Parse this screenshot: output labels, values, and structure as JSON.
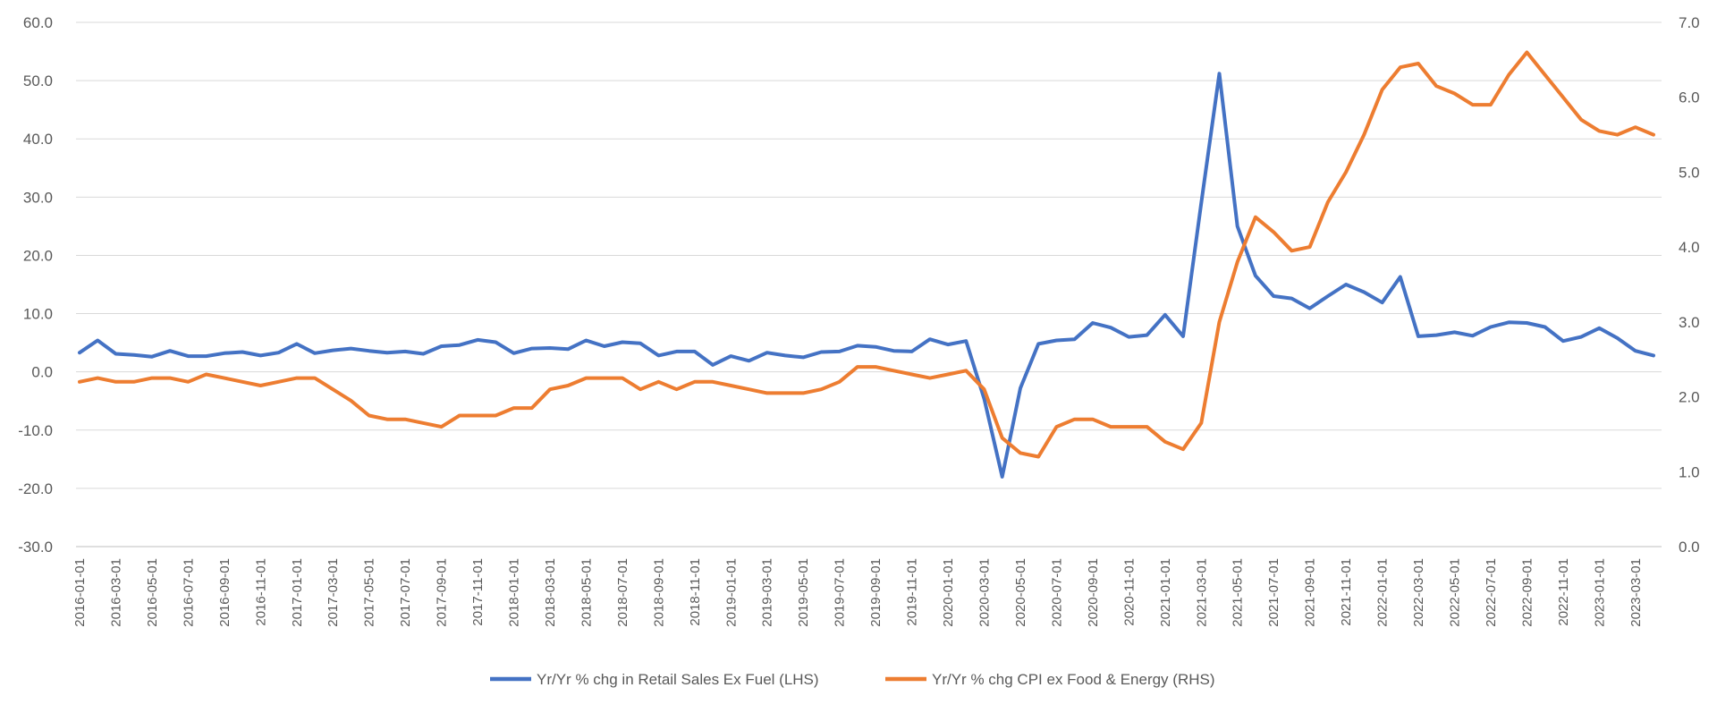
{
  "chart_data": {
    "type": "line",
    "title": "",
    "xlabel": "",
    "ylabel_left": "",
    "ylabel_right": "",
    "y_left": {
      "min": -30,
      "max": 60,
      "step": 10,
      "decimals": 1
    },
    "y_right": {
      "min": 0,
      "max": 7,
      "step": 1,
      "decimals": 1
    },
    "grid": true,
    "legend_position": "bottom",
    "x_tick_labels": [
      "2016-01-01",
      "2016-03-01",
      "2016-05-01",
      "2016-07-01",
      "2016-09-01",
      "2016-11-01",
      "2017-01-01",
      "2017-03-01",
      "2017-05-01",
      "2017-07-01",
      "2017-09-01",
      "2017-11-01",
      "2018-01-01",
      "2018-03-01",
      "2018-05-01",
      "2018-07-01",
      "2018-09-01",
      "2018-11-01",
      "2019-01-01",
      "2019-03-01",
      "2019-05-01",
      "2019-07-01",
      "2019-09-01",
      "2019-11-01",
      "2020-01-01",
      "2020-03-01",
      "2020-05-01",
      "2020-07-01",
      "2020-09-01",
      "2020-11-01",
      "2021-01-01",
      "2021-03-01",
      "2021-05-01",
      "2021-07-01",
      "2021-09-01",
      "2021-11-01",
      "2022-01-01",
      "2022-03-01",
      "2022-05-01",
      "2022-07-01",
      "2022-09-01",
      "2022-11-01",
      "2023-01-01",
      "2023-03-01"
    ],
    "series": [
      {
        "name": "Yr/Yr % chg in Retail Sales Ex Fuel (LHS)",
        "axis": "left",
        "color": "#4472C4",
        "values": [
          3.3,
          5.4,
          3.1,
          2.9,
          2.6,
          3.6,
          2.7,
          2.7,
          3.2,
          3.4,
          2.8,
          3.3,
          4.8,
          3.2,
          3.7,
          4.0,
          3.6,
          3.3,
          3.5,
          3.1,
          4.4,
          4.6,
          5.5,
          5.1,
          3.2,
          4.0,
          4.1,
          3.9,
          5.4,
          4.4,
          5.1,
          4.9,
          2.8,
          3.5,
          3.5,
          1.2,
          2.7,
          1.9,
          3.3,
          2.8,
          2.5,
          3.4,
          3.5,
          4.5,
          4.3,
          3.6,
          3.5,
          5.6,
          4.7,
          5.3,
          -4.6,
          -18.0,
          -2.8,
          4.8,
          5.4,
          5.6,
          8.4,
          7.6,
          6.0,
          6.3,
          9.8,
          6.1,
          29.0,
          51.2,
          25.0,
          16.5,
          13.0,
          12.6,
          10.9,
          13.0,
          15.0,
          13.7,
          11.9,
          16.3,
          6.1,
          6.3,
          6.8,
          6.2,
          7.7,
          8.5,
          8.4,
          7.7,
          5.3,
          6.0,
          7.5,
          5.8,
          3.6,
          2.8
        ]
      },
      {
        "name": "Yr/Yr % chg CPI ex Food & Energy (RHS)",
        "axis": "right",
        "color": "#ED7D31",
        "values": [
          2.2,
          2.25,
          2.2,
          2.2,
          2.25,
          2.25,
          2.2,
          2.3,
          2.25,
          2.2,
          2.15,
          2.2,
          2.25,
          2.25,
          2.1,
          1.95,
          1.75,
          1.7,
          1.7,
          1.65,
          1.6,
          1.75,
          1.75,
          1.75,
          1.85,
          1.85,
          2.1,
          2.15,
          2.25,
          2.25,
          2.25,
          2.1,
          2.2,
          2.1,
          2.2,
          2.2,
          2.15,
          2.1,
          2.05,
          2.05,
          2.05,
          2.1,
          2.2,
          2.4,
          2.4,
          2.35,
          2.3,
          2.25,
          2.3,
          2.35,
          2.1,
          1.45,
          1.25,
          1.2,
          1.6,
          1.7,
          1.7,
          1.6,
          1.6,
          1.6,
          1.4,
          1.3,
          1.65,
          3.0,
          3.8,
          4.4,
          4.2,
          3.95,
          4.0,
          4.6,
          5.0,
          5.5,
          6.1,
          6.4,
          6.45,
          6.15,
          6.05,
          5.9,
          5.9,
          6.3,
          6.6,
          6.3,
          6.0,
          5.7,
          5.55,
          5.5,
          5.6,
          5.5
        ]
      }
    ]
  }
}
